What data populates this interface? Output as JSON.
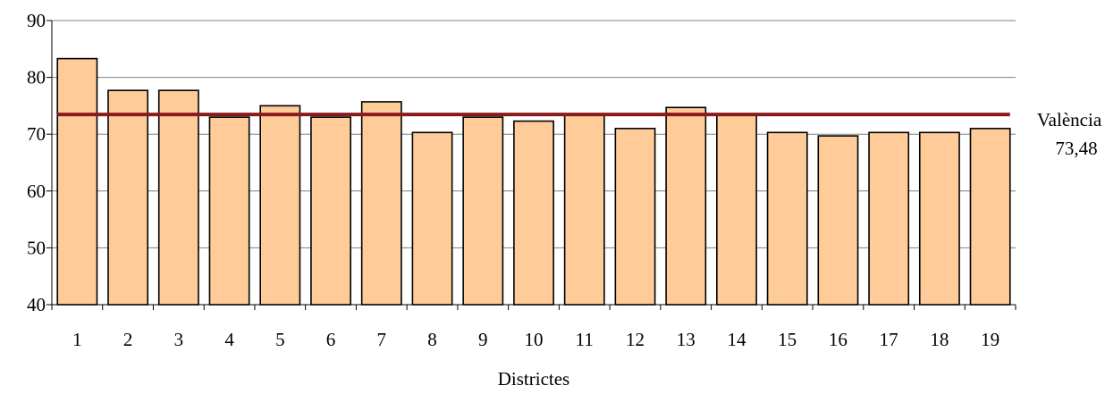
{
  "chart_data": {
    "type": "bar",
    "categories": [
      "1",
      "2",
      "3",
      "4",
      "5",
      "6",
      "7",
      "8",
      "9",
      "10",
      "11",
      "12",
      "13",
      "14",
      "15",
      "16",
      "17",
      "18",
      "19"
    ],
    "values": [
      83.3,
      77.7,
      77.7,
      73.0,
      75.0,
      73.0,
      75.7,
      70.3,
      73.0,
      72.3,
      73.3,
      71.0,
      74.7,
      73.3,
      70.3,
      69.7,
      70.3,
      70.3,
      71.0
    ],
    "xlabel": "Districtes",
    "ylabel": "",
    "ylim": [
      40,
      90
    ],
    "yticks": [
      "40",
      "50",
      "60",
      "70",
      "80",
      "90"
    ],
    "grid": true,
    "reference_line": {
      "value": 73.48,
      "label": "València",
      "value_label": "73,48",
      "color": "#8B1A1A"
    },
    "colors": {
      "bar": "#FFCC99",
      "bar_border": "#000000"
    }
  }
}
